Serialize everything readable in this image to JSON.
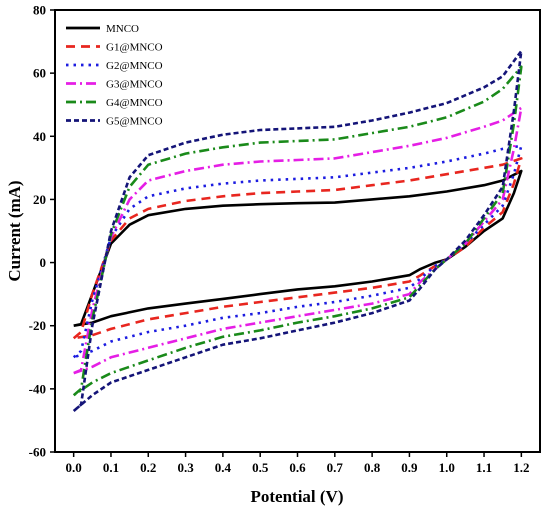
{
  "chart_data": {
    "type": "line",
    "title": "",
    "xlabel": "Potential (V)",
    "ylabel": "Current (mA)",
    "xlim": [
      -0.05,
      1.25
    ],
    "ylim": [
      -60,
      80
    ],
    "xticks": [
      "0.0",
      "0.1",
      "0.2",
      "0.3",
      "0.4",
      "0.5",
      "0.6",
      "0.7",
      "0.8",
      "0.9",
      "1.0",
      "1.1",
      "1.2"
    ],
    "yticks": [
      "-60",
      "-40",
      "-20",
      "0",
      "20",
      "40",
      "60",
      "80"
    ],
    "grid": false,
    "legend_position": "top-left",
    "series": [
      {
        "name": "MNCO",
        "color": "#000000",
        "dash": "solid",
        "points": [
          [
            0.0,
            -20
          ],
          [
            0.02,
            -19.5
          ],
          [
            0.05,
            -10
          ],
          [
            0.1,
            6
          ],
          [
            0.15,
            12
          ],
          [
            0.2,
            15
          ],
          [
            0.3,
            17
          ],
          [
            0.4,
            18
          ],
          [
            0.5,
            18.5
          ],
          [
            0.6,
            18.8
          ],
          [
            0.7,
            19
          ],
          [
            0.8,
            20
          ],
          [
            0.9,
            21
          ],
          [
            1.0,
            22.5
          ],
          [
            1.1,
            24.5
          ],
          [
            1.15,
            26
          ],
          [
            1.2,
            29
          ],
          [
            1.18,
            22
          ],
          [
            1.15,
            14
          ],
          [
            1.1,
            10
          ],
          [
            1.05,
            5
          ],
          [
            1.0,
            1
          ],
          [
            0.97,
            0
          ],
          [
            0.93,
            -2
          ],
          [
            0.9,
            -4
          ],
          [
            0.8,
            -6
          ],
          [
            0.7,
            -7.5
          ],
          [
            0.6,
            -8.5
          ],
          [
            0.5,
            -10
          ],
          [
            0.4,
            -11.5
          ],
          [
            0.3,
            -13
          ],
          [
            0.2,
            -14.5
          ],
          [
            0.1,
            -17
          ],
          [
            0.05,
            -19
          ],
          [
            0.0,
            -20
          ]
        ]
      },
      {
        "name": "G1@MNCO",
        "color": "#e8261f",
        "dash": "dashed",
        "points": [
          [
            0.0,
            -24
          ],
          [
            0.02,
            -22
          ],
          [
            0.05,
            -10
          ],
          [
            0.1,
            7
          ],
          [
            0.15,
            14
          ],
          [
            0.2,
            17
          ],
          [
            0.3,
            19.5
          ],
          [
            0.4,
            21
          ],
          [
            0.5,
            22
          ],
          [
            0.6,
            22.5
          ],
          [
            0.7,
            23
          ],
          [
            0.8,
            24.5
          ],
          [
            0.9,
            26
          ],
          [
            1.0,
            28
          ],
          [
            1.1,
            30
          ],
          [
            1.15,
            31
          ],
          [
            1.2,
            33
          ],
          [
            1.18,
            25
          ],
          [
            1.15,
            16
          ],
          [
            1.1,
            11
          ],
          [
            1.05,
            5
          ],
          [
            1.0,
            1
          ],
          [
            0.97,
            -1
          ],
          [
            0.93,
            -4
          ],
          [
            0.9,
            -6
          ],
          [
            0.8,
            -8
          ],
          [
            0.7,
            -9.5
          ],
          [
            0.6,
            -11
          ],
          [
            0.5,
            -12.5
          ],
          [
            0.4,
            -14
          ],
          [
            0.3,
            -16
          ],
          [
            0.2,
            -18
          ],
          [
            0.1,
            -21
          ],
          [
            0.05,
            -23
          ],
          [
            0.0,
            -24
          ]
        ]
      },
      {
        "name": "G2@MNCO",
        "color": "#1c1ce0",
        "dash": "dotted",
        "points": [
          [
            0.0,
            -30
          ],
          [
            0.02,
            -28
          ],
          [
            0.05,
            -12
          ],
          [
            0.1,
            8
          ],
          [
            0.15,
            17
          ],
          [
            0.2,
            21
          ],
          [
            0.3,
            23.5
          ],
          [
            0.4,
            25
          ],
          [
            0.5,
            26
          ],
          [
            0.6,
            26.5
          ],
          [
            0.7,
            27
          ],
          [
            0.8,
            28.5
          ],
          [
            0.9,
            30
          ],
          [
            1.0,
            32
          ],
          [
            1.1,
            34.5
          ],
          [
            1.15,
            36
          ],
          [
            1.2,
            37
          ],
          [
            1.18,
            28
          ],
          [
            1.15,
            18
          ],
          [
            1.1,
            12
          ],
          [
            1.05,
            6
          ],
          [
            1.0,
            1
          ],
          [
            0.97,
            -1
          ],
          [
            0.93,
            -5
          ],
          [
            0.9,
            -8
          ],
          [
            0.8,
            -10.5
          ],
          [
            0.7,
            -12.5
          ],
          [
            0.6,
            -14
          ],
          [
            0.5,
            -16
          ],
          [
            0.4,
            -17.5
          ],
          [
            0.3,
            -20
          ],
          [
            0.2,
            -22
          ],
          [
            0.1,
            -25
          ],
          [
            0.05,
            -28
          ],
          [
            0.0,
            -30
          ]
        ]
      },
      {
        "name": "G3@MNCO",
        "color": "#e51ee5",
        "dash": "dashdot",
        "points": [
          [
            0.0,
            -35
          ],
          [
            0.02,
            -34
          ],
          [
            0.05,
            -15
          ],
          [
            0.1,
            8
          ],
          [
            0.15,
            20
          ],
          [
            0.2,
            26
          ],
          [
            0.3,
            29
          ],
          [
            0.4,
            31
          ],
          [
            0.5,
            32
          ],
          [
            0.6,
            32.5
          ],
          [
            0.7,
            33
          ],
          [
            0.8,
            35
          ],
          [
            0.9,
            37
          ],
          [
            1.0,
            39.5
          ],
          [
            1.1,
            43
          ],
          [
            1.15,
            45
          ],
          [
            1.2,
            49
          ],
          [
            1.18,
            36
          ],
          [
            1.15,
            20
          ],
          [
            1.1,
            13
          ],
          [
            1.05,
            6
          ],
          [
            1.0,
            1
          ],
          [
            0.97,
            -2
          ],
          [
            0.93,
            -6
          ],
          [
            0.9,
            -10
          ],
          [
            0.8,
            -13
          ],
          [
            0.7,
            -15
          ],
          [
            0.6,
            -17
          ],
          [
            0.5,
            -19
          ],
          [
            0.4,
            -21
          ],
          [
            0.3,
            -24
          ],
          [
            0.2,
            -27
          ],
          [
            0.1,
            -30
          ],
          [
            0.05,
            -33
          ],
          [
            0.0,
            -35
          ]
        ]
      },
      {
        "name": "G4@MNCO",
        "color": "#1a8a1a",
        "dash": "dashdot",
        "points": [
          [
            0.0,
            -42
          ],
          [
            0.02,
            -40
          ],
          [
            0.05,
            -18
          ],
          [
            0.1,
            9
          ],
          [
            0.15,
            24
          ],
          [
            0.2,
            31
          ],
          [
            0.3,
            34.5
          ],
          [
            0.4,
            36.5
          ],
          [
            0.5,
            38
          ],
          [
            0.6,
            38.5
          ],
          [
            0.7,
            39
          ],
          [
            0.8,
            41
          ],
          [
            0.9,
            43
          ],
          [
            1.0,
            46
          ],
          [
            1.1,
            51
          ],
          [
            1.15,
            55
          ],
          [
            1.2,
            62
          ],
          [
            1.18,
            44
          ],
          [
            1.15,
            22
          ],
          [
            1.1,
            14
          ],
          [
            1.05,
            6
          ],
          [
            1.0,
            1
          ],
          [
            0.97,
            -2
          ],
          [
            0.93,
            -7
          ],
          [
            0.9,
            -11
          ],
          [
            0.8,
            -14.5
          ],
          [
            0.7,
            -17
          ],
          [
            0.6,
            -19
          ],
          [
            0.5,
            -21.5
          ],
          [
            0.4,
            -23.5
          ],
          [
            0.3,
            -27
          ],
          [
            0.2,
            -31
          ],
          [
            0.1,
            -35
          ],
          [
            0.05,
            -38
          ],
          [
            0.0,
            -42
          ]
        ]
      },
      {
        "name": "G5@MNCO",
        "color": "#141478",
        "dash": "dense-dashed",
        "points": [
          [
            0.0,
            -47
          ],
          [
            0.02,
            -45
          ],
          [
            0.05,
            -20
          ],
          [
            0.1,
            10
          ],
          [
            0.15,
            27
          ],
          [
            0.2,
            34
          ],
          [
            0.3,
            38
          ],
          [
            0.4,
            40.5
          ],
          [
            0.5,
            42
          ],
          [
            0.6,
            42.5
          ],
          [
            0.7,
            43
          ],
          [
            0.8,
            45
          ],
          [
            0.9,
            47.5
          ],
          [
            1.0,
            50.5
          ],
          [
            1.1,
            55.5
          ],
          [
            1.15,
            59
          ],
          [
            1.2,
            67
          ],
          [
            1.18,
            48
          ],
          [
            1.15,
            24
          ],
          [
            1.1,
            15
          ],
          [
            1.05,
            7
          ],
          [
            1.0,
            1
          ],
          [
            0.97,
            -2
          ],
          [
            0.93,
            -8
          ],
          [
            0.9,
            -12
          ],
          [
            0.8,
            -16
          ],
          [
            0.7,
            -19
          ],
          [
            0.6,
            -21.5
          ],
          [
            0.5,
            -24
          ],
          [
            0.4,
            -26
          ],
          [
            0.3,
            -30
          ],
          [
            0.2,
            -34
          ],
          [
            0.1,
            -38
          ],
          [
            0.05,
            -42
          ],
          [
            0.0,
            -47
          ]
        ]
      }
    ]
  }
}
